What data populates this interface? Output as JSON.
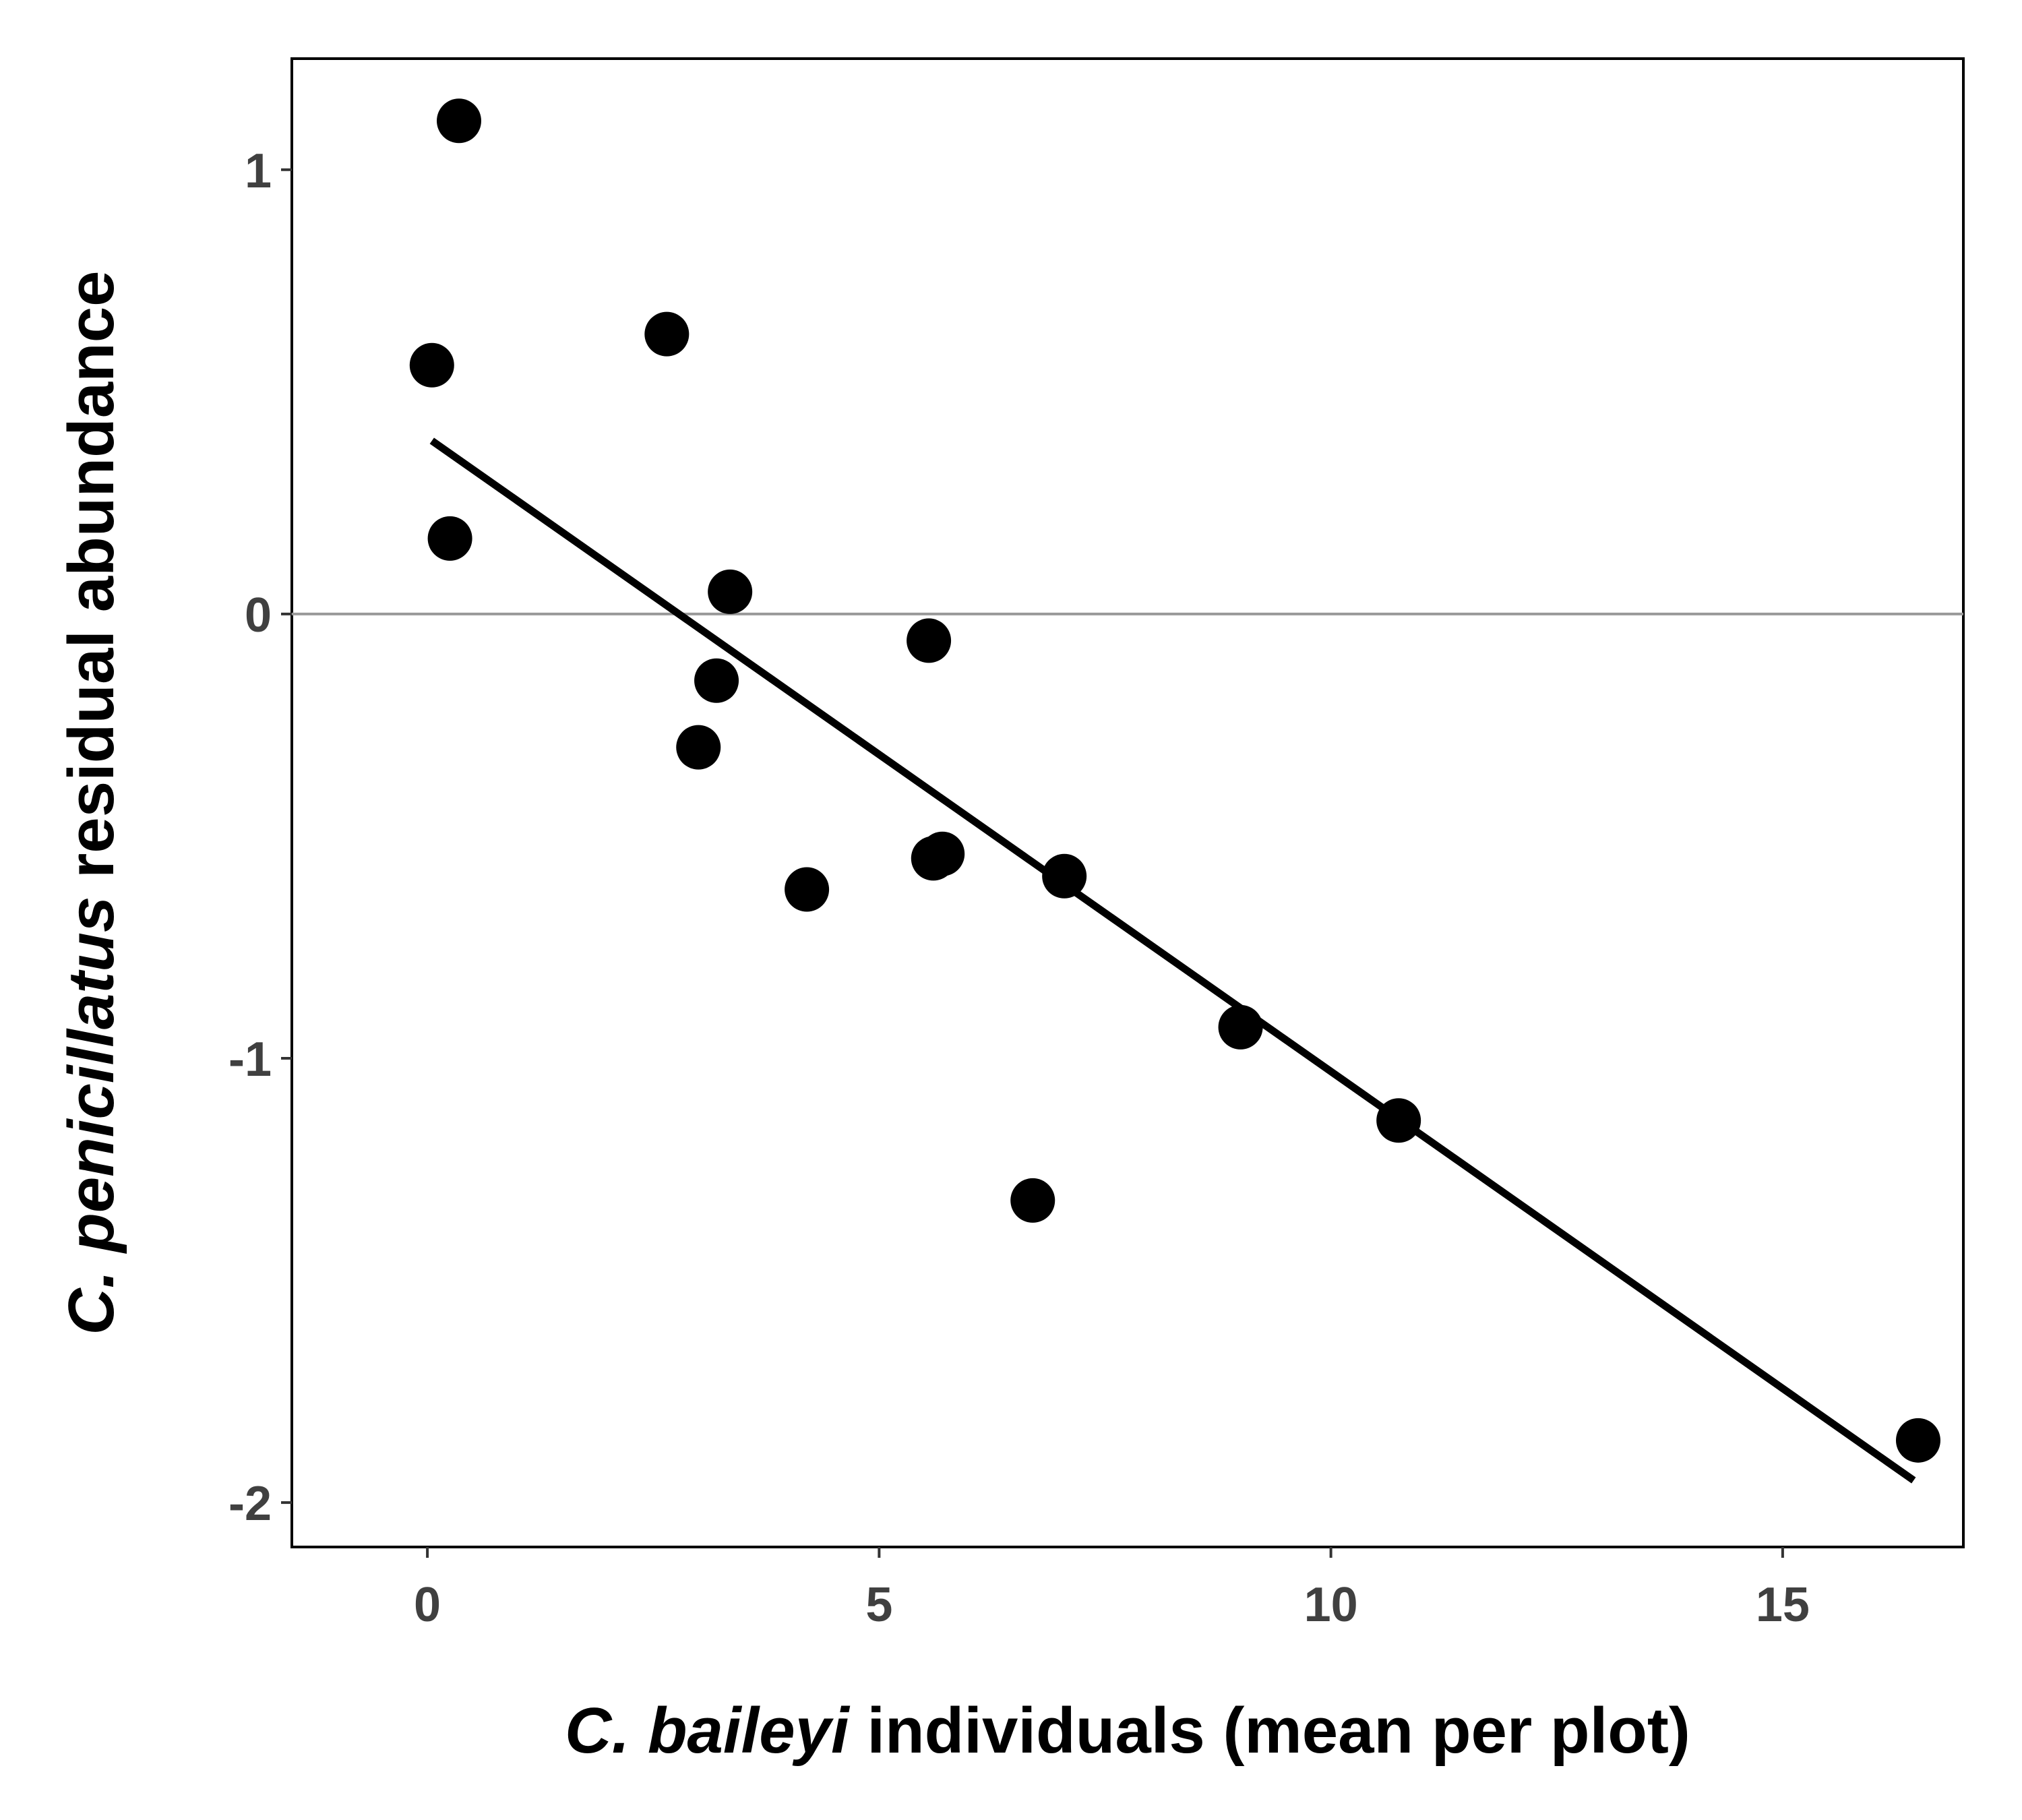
{
  "chart_data": {
    "type": "scatter",
    "xlabel_italic": "C. baileyi",
    "xlabel_rest": " individuals (mean per plot)",
    "ylabel_italic": "C. penicillatus",
    "ylabel_rest": " residual abundance",
    "xlim": [
      -1.5,
      17.0
    ],
    "ylim": [
      -2.1,
      1.25
    ],
    "xticks": [
      0,
      5,
      10,
      15
    ],
    "xtick_labels": [
      "0",
      "5",
      "10",
      "15"
    ],
    "yticks": [
      1,
      0,
      -1,
      -2
    ],
    "ytick_labels": [
      "1",
      "0",
      "-1",
      "-2"
    ],
    "reference_line_y": 0,
    "grid": false,
    "legend": "none",
    "points": [
      {
        "x": 0.35,
        "y": 1.11
      },
      {
        "x": 0.05,
        "y": 0.56
      },
      {
        "x": 2.65,
        "y": 0.63
      },
      {
        "x": 0.25,
        "y": 0.17
      },
      {
        "x": 3.35,
        "y": 0.05
      },
      {
        "x": 5.55,
        "y": -0.06
      },
      {
        "x": 3.2,
        "y": -0.15
      },
      {
        "x": 3.0,
        "y": -0.3
      },
      {
        "x": 5.6,
        "y": -0.55
      },
      {
        "x": 5.7,
        "y": -0.54
      },
      {
        "x": 7.05,
        "y": -0.59
      },
      {
        "x": 4.2,
        "y": -0.62
      },
      {
        "x": 9.0,
        "y": -0.93
      },
      {
        "x": 10.75,
        "y": -1.14
      },
      {
        "x": 6.7,
        "y": -1.32
      },
      {
        "x": 16.5,
        "y": -1.86
      }
    ],
    "fit_line": {
      "x": [
        0.05,
        16.45
      ],
      "y": [
        0.39,
        -1.95
      ]
    },
    "colors": {
      "points": "#000000",
      "fit": "#000000",
      "reference": "#999999",
      "tick_text": "#404040"
    }
  }
}
